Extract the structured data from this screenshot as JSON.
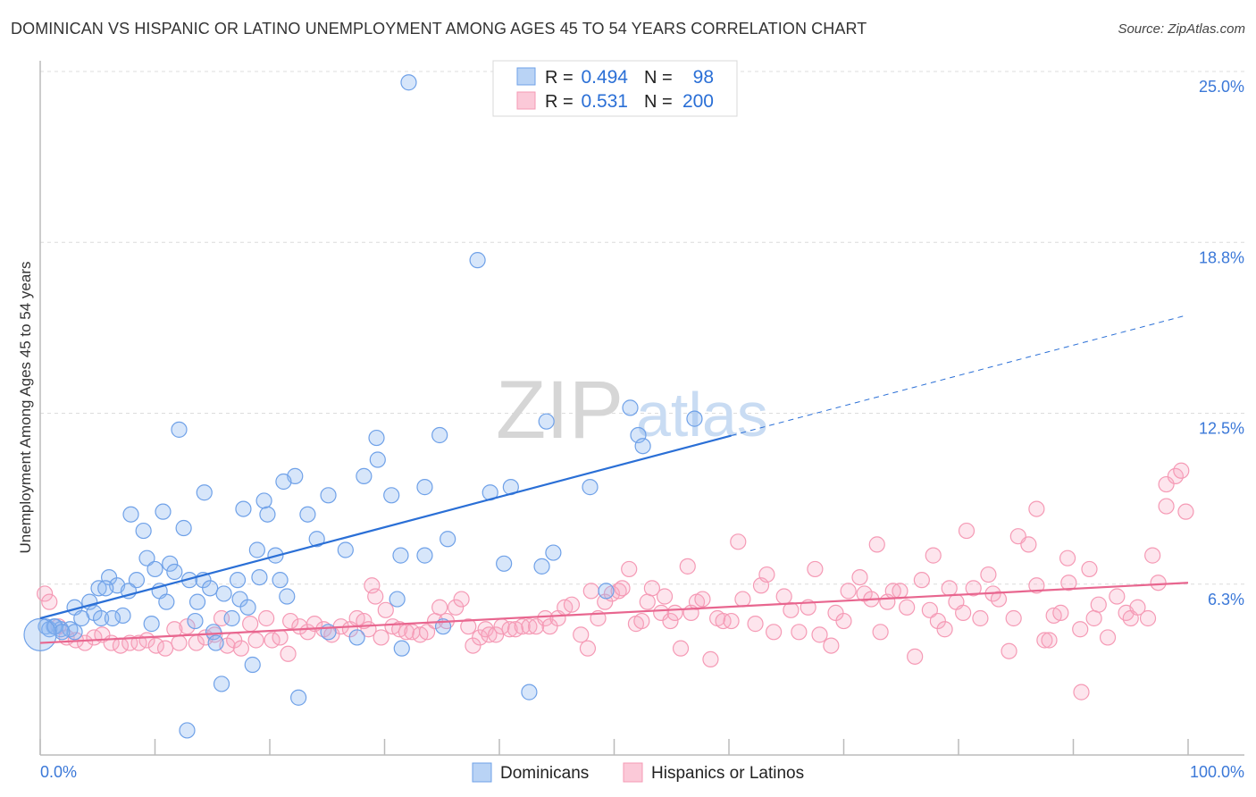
{
  "chart_data": {
    "type": "scatter",
    "title": "DOMINICAN VS HISPANIC OR LATINO UNEMPLOYMENT AMONG AGES 45 TO 54 YEARS CORRELATION CHART",
    "source": "Source: ZipAtlas.com",
    "watermark": "ZIPatlas",
    "xlabel": "",
    "ylabel": "Unemployment Among Ages 45 to 54 years",
    "xlim": [
      0,
      100
    ],
    "ylim": [
      0,
      25.8
    ],
    "x_tick_labels": [
      {
        "value": 0,
        "label": "0.0%"
      },
      {
        "value": 100,
        "label": "100.0%"
      }
    ],
    "x_ticks": [
      0,
      10,
      20,
      30,
      40,
      50,
      60,
      70,
      80,
      90,
      100
    ],
    "y_ticks": [
      {
        "value": 25,
        "label": "25.0%"
      },
      {
        "value": 18.75,
        "label": "18.8%"
      },
      {
        "value": 12.5,
        "label": "12.5%"
      },
      {
        "value": 6.25,
        "label": "6.3%"
      }
    ],
    "grid": true,
    "legend_placement": "bottom-center",
    "stats_box": [
      {
        "r_label": "R =",
        "r": "0.494",
        "n_label": "N =",
        "n": "98"
      },
      {
        "r_label": "R =",
        "r": "0.531",
        "n_label": "N =",
        "n": "200"
      }
    ],
    "series": [
      {
        "name": "Dominicans",
        "color": "#6fa1e8",
        "line_color": "#2a6fd6",
        "trend": {
          "x": [
            0,
            100
          ],
          "y": [
            5.0,
            16.1
          ],
          "solid_until": 60.2
        },
        "points": [
          [
            32.1,
            24.6
          ],
          [
            38.1,
            18.1
          ],
          [
            12.1,
            11.9
          ],
          [
            29.3,
            11.6
          ],
          [
            34.8,
            11.7
          ],
          [
            44.1,
            12.2
          ],
          [
            51.4,
            12.7
          ],
          [
            57.0,
            12.3
          ],
          [
            52.1,
            11.7
          ],
          [
            52.5,
            11.3
          ],
          [
            29.4,
            10.8
          ],
          [
            28.2,
            10.2
          ],
          [
            22.2,
            10.2
          ],
          [
            21.2,
            10.0
          ],
          [
            14.3,
            9.6
          ],
          [
            25.1,
            9.5
          ],
          [
            30.6,
            9.5
          ],
          [
            33.5,
            9.8
          ],
          [
            39.2,
            9.6
          ],
          [
            41.0,
            9.8
          ],
          [
            47.9,
            9.8
          ],
          [
            19.5,
            9.3
          ],
          [
            17.7,
            9.0
          ],
          [
            7.9,
            8.8
          ],
          [
            10.7,
            8.9
          ],
          [
            23.3,
            8.8
          ],
          [
            12.5,
            8.3
          ],
          [
            9.0,
            8.2
          ],
          [
            19.8,
            8.8
          ],
          [
            24.1,
            7.9
          ],
          [
            35.5,
            7.9
          ],
          [
            18.9,
            7.5
          ],
          [
            26.6,
            7.5
          ],
          [
            31.4,
            7.3
          ],
          [
            33.5,
            7.3
          ],
          [
            20.5,
            7.3
          ],
          [
            44.7,
            7.4
          ],
          [
            40.4,
            7.0
          ],
          [
            43.7,
            6.9
          ],
          [
            9.3,
            7.2
          ],
          [
            11.3,
            7.0
          ],
          [
            10.0,
            6.8
          ],
          [
            11.7,
            6.7
          ],
          [
            6.0,
            6.5
          ],
          [
            8.4,
            6.4
          ],
          [
            13.0,
            6.4
          ],
          [
            14.2,
            6.4
          ],
          [
            17.2,
            6.4
          ],
          [
            19.1,
            6.5
          ],
          [
            20.9,
            6.4
          ],
          [
            5.1,
            6.1
          ],
          [
            6.7,
            6.2
          ],
          [
            7.7,
            6.0
          ],
          [
            5.7,
            6.1
          ],
          [
            10.4,
            6.0
          ],
          [
            14.8,
            6.1
          ],
          [
            16.0,
            5.9
          ],
          [
            17.4,
            5.7
          ],
          [
            18.1,
            5.4
          ],
          [
            21.5,
            5.8
          ],
          [
            31.1,
            5.7
          ],
          [
            49.3,
            6.0
          ],
          [
            4.3,
            5.6
          ],
          [
            3.0,
            5.4
          ],
          [
            4.7,
            5.2
          ],
          [
            11.0,
            5.6
          ],
          [
            13.7,
            5.6
          ],
          [
            7.2,
            5.1
          ],
          [
            5.3,
            5.0
          ],
          [
            6.3,
            5.0
          ],
          [
            3.6,
            5.0
          ],
          [
            9.7,
            4.8
          ],
          [
            13.5,
            4.9
          ],
          [
            16.7,
            5.0
          ],
          [
            0.5,
            4.7
          ],
          [
            1.2,
            4.7
          ],
          [
            1.8,
            4.6
          ],
          [
            2.6,
            4.6
          ],
          [
            3.0,
            4.5
          ],
          [
            0.8,
            4.6
          ],
          [
            1.3,
            4.7
          ],
          [
            1.9,
            4.5
          ],
          [
            15.1,
            4.5
          ],
          [
            15.3,
            4.1
          ],
          [
            25.1,
            4.5
          ],
          [
            27.6,
            4.3
          ],
          [
            35.1,
            4.7
          ],
          [
            15.8,
            2.6
          ],
          [
            18.5,
            3.3
          ],
          [
            22.5,
            2.1
          ],
          [
            12.8,
            0.9
          ],
          [
            31.5,
            3.9
          ],
          [
            42.6,
            2.3
          ],
          [
            0.0,
            4.4
          ]
        ]
      },
      {
        "name": "Hispanics or Latinos",
        "color": "#f59ab5",
        "line_color": "#e8668f",
        "trend": {
          "x": [
            0,
            100
          ],
          "y": [
            4.1,
            6.3
          ],
          "solid_until": 100
        },
        "points": [
          [
            0.4,
            5.9
          ],
          [
            0.8,
            5.6
          ],
          [
            1.6,
            4.7
          ],
          [
            2.3,
            4.3
          ],
          [
            3.1,
            4.2
          ],
          [
            3.9,
            4.1
          ],
          [
            4.7,
            4.3
          ],
          [
            5.4,
            4.4
          ],
          [
            6.2,
            4.1
          ],
          [
            7.0,
            4.0
          ],
          [
            7.8,
            4.1
          ],
          [
            8.6,
            4.1
          ],
          [
            9.3,
            4.2
          ],
          [
            10.1,
            4.0
          ],
          [
            10.9,
            3.9
          ],
          [
            11.7,
            4.6
          ],
          [
            12.1,
            4.1
          ],
          [
            12.8,
            4.7
          ],
          [
            13.6,
            4.1
          ],
          [
            14.4,
            4.3
          ],
          [
            15.2,
            4.4
          ],
          [
            15.8,
            5.0
          ],
          [
            16.3,
            4.0
          ],
          [
            16.9,
            4.2
          ],
          [
            17.5,
            3.9
          ],
          [
            18.3,
            4.8
          ],
          [
            18.8,
            4.2
          ],
          [
            19.7,
            5.0
          ],
          [
            20.2,
            4.2
          ],
          [
            20.9,
            4.3
          ],
          [
            21.6,
            3.7
          ],
          [
            21.8,
            4.9
          ],
          [
            22.6,
            4.7
          ],
          [
            23.3,
            4.5
          ],
          [
            23.9,
            4.8
          ],
          [
            24.7,
            4.6
          ],
          [
            25.4,
            4.4
          ],
          [
            26.2,
            4.7
          ],
          [
            27.0,
            4.6
          ],
          [
            27.6,
            5.0
          ],
          [
            28.2,
            4.9
          ],
          [
            28.6,
            4.6
          ],
          [
            28.9,
            6.2
          ],
          [
            29.2,
            5.8
          ],
          [
            29.7,
            4.3
          ],
          [
            30.1,
            5.3
          ],
          [
            30.7,
            4.7
          ],
          [
            31.3,
            4.6
          ],
          [
            31.9,
            4.5
          ],
          [
            32.4,
            4.5
          ],
          [
            33.1,
            4.4
          ],
          [
            33.7,
            4.5
          ],
          [
            34.4,
            4.9
          ],
          [
            34.8,
            5.4
          ],
          [
            35.4,
            4.9
          ],
          [
            36.2,
            5.4
          ],
          [
            36.7,
            5.7
          ],
          [
            37.3,
            4.7
          ],
          [
            37.7,
            4.0
          ],
          [
            38.3,
            4.3
          ],
          [
            38.8,
            4.6
          ],
          [
            39.1,
            4.4
          ],
          [
            39.7,
            4.4
          ],
          [
            40.2,
            4.7
          ],
          [
            40.9,
            4.6
          ],
          [
            41.4,
            4.6
          ],
          [
            42.0,
            4.7
          ],
          [
            42.6,
            4.7
          ],
          [
            43.2,
            4.7
          ],
          [
            44.0,
            5.0
          ],
          [
            44.4,
            4.7
          ],
          [
            45.1,
            5.0
          ],
          [
            45.7,
            5.4
          ],
          [
            46.3,
            5.5
          ],
          [
            47.1,
            4.4
          ],
          [
            47.7,
            3.9
          ],
          [
            48.0,
            6.0
          ],
          [
            48.6,
            5.0
          ],
          [
            49.2,
            5.6
          ],
          [
            49.8,
            5.9
          ],
          [
            50.4,
            6.0
          ],
          [
            50.7,
            6.1
          ],
          [
            51.3,
            6.8
          ],
          [
            51.9,
            4.8
          ],
          [
            52.4,
            4.9
          ],
          [
            52.9,
            5.6
          ],
          [
            53.3,
            6.1
          ],
          [
            54.1,
            5.2
          ],
          [
            54.4,
            5.8
          ],
          [
            54.9,
            4.9
          ],
          [
            55.3,
            5.2
          ],
          [
            55.8,
            3.9
          ],
          [
            56.4,
            6.9
          ],
          [
            56.7,
            5.2
          ],
          [
            57.2,
            5.6
          ],
          [
            57.7,
            5.7
          ],
          [
            58.4,
            3.5
          ],
          [
            59.0,
            5.0
          ],
          [
            59.5,
            4.9
          ],
          [
            60.2,
            4.9
          ],
          [
            60.8,
            7.8
          ],
          [
            61.2,
            5.7
          ],
          [
            62.3,
            4.8
          ],
          [
            62.8,
            6.2
          ],
          [
            63.3,
            6.6
          ],
          [
            63.9,
            4.5
          ],
          [
            64.8,
            5.8
          ],
          [
            65.4,
            5.3
          ],
          [
            66.1,
            4.5
          ],
          [
            66.9,
            5.4
          ],
          [
            67.5,
            6.8
          ],
          [
            67.9,
            4.4
          ],
          [
            68.9,
            4.0
          ],
          [
            69.3,
            5.2
          ],
          [
            70.0,
            4.9
          ],
          [
            70.4,
            6.0
          ],
          [
            71.4,
            6.5
          ],
          [
            71.8,
            5.9
          ],
          [
            72.4,
            5.7
          ],
          [
            73.2,
            4.5
          ],
          [
            72.9,
            7.7
          ],
          [
            73.8,
            5.6
          ],
          [
            74.3,
            6.0
          ],
          [
            74.9,
            6.0
          ],
          [
            75.5,
            5.4
          ],
          [
            76.2,
            3.6
          ],
          [
            76.8,
            6.4
          ],
          [
            77.5,
            5.3
          ],
          [
            77.8,
            7.3
          ],
          [
            78.2,
            4.9
          ],
          [
            78.8,
            4.6
          ],
          [
            79.2,
            6.1
          ],
          [
            79.8,
            5.6
          ],
          [
            80.4,
            5.2
          ],
          [
            80.7,
            8.2
          ],
          [
            81.3,
            6.1
          ],
          [
            81.9,
            5.0
          ],
          [
            82.6,
            6.6
          ],
          [
            83.0,
            5.9
          ],
          [
            83.5,
            5.7
          ],
          [
            84.4,
            3.8
          ],
          [
            84.8,
            5.0
          ],
          [
            85.2,
            8.0
          ],
          [
            86.1,
            7.7
          ],
          [
            86.8,
            9.0
          ],
          [
            86.8,
            6.2
          ],
          [
            87.5,
            4.2
          ],
          [
            87.9,
            4.2
          ],
          [
            88.3,
            5.1
          ],
          [
            88.9,
            5.2
          ],
          [
            89.5,
            7.2
          ],
          [
            89.6,
            6.3
          ],
          [
            90.6,
            4.6
          ],
          [
            90.7,
            2.3
          ],
          [
            91.4,
            6.8
          ],
          [
            91.8,
            5.0
          ],
          [
            92.2,
            5.5
          ],
          [
            93.0,
            4.3
          ],
          [
            93.8,
            5.8
          ],
          [
            94.6,
            5.2
          ],
          [
            95.0,
            5.0
          ],
          [
            95.6,
            5.4
          ],
          [
            96.5,
            5.0
          ],
          [
            96.9,
            7.3
          ],
          [
            97.4,
            6.3
          ],
          [
            98.1,
            9.1
          ],
          [
            98.1,
            9.9
          ],
          [
            98.9,
            10.2
          ],
          [
            99.4,
            10.4
          ],
          [
            99.8,
            8.9
          ]
        ]
      }
    ]
  }
}
